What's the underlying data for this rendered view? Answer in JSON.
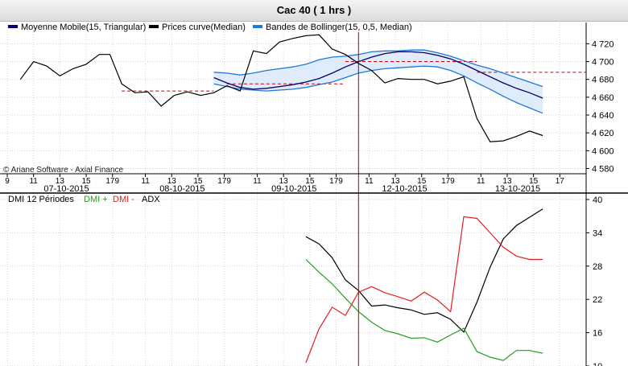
{
  "window": {
    "title": "Cac 40  ( 1 hrs )"
  },
  "watermark": "© Ariane Software - Axial Finance",
  "chart_data": [
    {
      "type": "line",
      "name": "price-panel",
      "legend": [
        {
          "label": "Moyenne Mobile(15, Triangular)",
          "color": "#000066"
        },
        {
          "label": "Prices curve(Median)",
          "color": "#000000"
        },
        {
          "label": "Bandes de Bollinger(15, 0,5, Median)",
          "color": "#1f78d8"
        }
      ],
      "ylim": [
        4575,
        4733
      ],
      "yticks": [
        4580,
        4600,
        4620,
        4640,
        4660,
        4680,
        4700,
        4720
      ],
      "ytick_labels": [
        "4 580",
        "4 600",
        "4 620",
        "4 640",
        "4 660",
        "4 680",
        "4 700",
        "4 720"
      ],
      "xlim": [
        0,
        44
      ],
      "xticks": [
        {
          "x": 0,
          "label": "9"
        },
        {
          "x": 2,
          "label": "11"
        },
        {
          "x": 4,
          "label": "13"
        },
        {
          "x": 6,
          "label": "15"
        },
        {
          "x": 8,
          "label": "179"
        },
        {
          "x": 10.5,
          "label": "11"
        },
        {
          "x": 12.5,
          "label": "13"
        },
        {
          "x": 14.5,
          "label": "15"
        },
        {
          "x": 16.5,
          "label": "179"
        },
        {
          "x": 19,
          "label": "11"
        },
        {
          "x": 21,
          "label": "13"
        },
        {
          "x": 23,
          "label": "15"
        },
        {
          "x": 25,
          "label": "179"
        },
        {
          "x": 27.5,
          "label": "11"
        },
        {
          "x": 29.5,
          "label": "13"
        },
        {
          "x": 31.5,
          "label": "15"
        },
        {
          "x": 33.5,
          "label": "179"
        },
        {
          "x": 36,
          "label": "11"
        },
        {
          "x": 38,
          "label": "13"
        },
        {
          "x": 40,
          "label": "15"
        },
        {
          "x": 42,
          "label": "17"
        }
      ],
      "date_labels": [
        {
          "x": 4.5,
          "label": "07-10-2015"
        },
        {
          "x": 13.3,
          "label": "08-10-2015"
        },
        {
          "x": 21.8,
          "label": "09-10-2015"
        },
        {
          "x": 30.2,
          "label": "12-10-2015"
        },
        {
          "x": 38.8,
          "label": "13-10-2015"
        }
      ],
      "series": [
        {
          "name": "Prices curve(Median)",
          "color": "#000000",
          "x": [
            1,
            2,
            3,
            4,
            5,
            6,
            7,
            7.8,
            8.7,
            9.7,
            10.7,
            11.7,
            12.7,
            13.7,
            14.7,
            15.7,
            16.7,
            17.7,
            18.7,
            19.7,
            20.7,
            21.7,
            22.7,
            23.7,
            24.7,
            25.7,
            26.7,
            27.7,
            28.7,
            29.7,
            30.7,
            31.7,
            32.7,
            33.7,
            34.7,
            35.7,
            36.7,
            37.7,
            38.7,
            39.7,
            40.7
          ],
          "values": [
            4680,
            4700,
            4695,
            4684,
            4692,
            4697,
            4708,
            4708,
            4675,
            4665,
            4666,
            4650,
            4662,
            4666,
            4662,
            4665,
            4673,
            4667,
            4712,
            4709,
            4722,
            4726,
            4729,
            4730,
            4714,
            4708,
            4698,
            4690,
            4676,
            4681,
            4680,
            4680,
            4675,
            4678,
            4683,
            4636,
            4610,
            4611,
            4616,
            4622,
            4617
          ]
        },
        {
          "name": "Moyenne Mobile(15, Triangular)",
          "color": "#000066",
          "x": [
            15.7,
            16.7,
            17.7,
            18.7,
            19.7,
            20.7,
            21.7,
            22.7,
            23.7,
            24.7,
            25.7,
            26.7,
            27.7,
            28.7,
            29.7,
            30.7,
            31.7,
            32.7,
            33.7,
            34.7,
            35.7,
            36.7,
            37.7,
            38.7,
            39.7,
            40.7
          ],
          "values": [
            4682,
            4676,
            4671,
            4669,
            4670,
            4672,
            4674,
            4677,
            4681,
            4687,
            4694,
            4700,
            4705,
            4709,
            4711,
            4711,
            4710,
            4707,
            4703,
            4697,
            4690,
            4683,
            4676,
            4670,
            4665,
            4659
          ]
        },
        {
          "name": "Bollinger upper",
          "color": "#1f78d8",
          "x": [
            15.7,
            16.7,
            17.7,
            18.7,
            19.7,
            20.7,
            21.7,
            22.7,
            23.7,
            24.7,
            25.7,
            26.7,
            27.7,
            28.7,
            29.7,
            30.7,
            31.7,
            32.7,
            33.7,
            34.7,
            35.7,
            36.7,
            37.7,
            38.7,
            39.7,
            40.7
          ],
          "values": [
            4688,
            4687,
            4685,
            4687,
            4690,
            4692,
            4694,
            4697,
            4702,
            4705,
            4706,
            4708,
            4711,
            4712,
            4712,
            4713,
            4713,
            4710,
            4706,
            4701,
            4696,
            4692,
            4687,
            4682,
            4677,
            4672
          ]
        },
        {
          "name": "Bollinger lower",
          "color": "#1f78d8",
          "x": [
            15.7,
            16.7,
            17.7,
            18.7,
            19.7,
            20.7,
            21.7,
            22.7,
            23.7,
            24.7,
            25.7,
            26.7,
            27.7,
            28.7,
            29.7,
            30.7,
            31.7,
            32.7,
            33.7,
            34.7,
            35.7,
            36.7,
            37.7,
            38.7,
            39.7,
            40.7
          ],
          "values": [
            4675,
            4672,
            4669,
            4668,
            4667,
            4668,
            4669,
            4671,
            4674,
            4677,
            4682,
            4687,
            4690,
            4692,
            4693,
            4694,
            4695,
            4694,
            4690,
            4684,
            4676,
            4669,
            4661,
            4654,
            4648,
            4642
          ]
        }
      ],
      "dashed_levels": [
        {
          "x": [
            8.7,
            15.7
          ],
          "y": 4667,
          "color": "#cc0000"
        },
        {
          "x": [
            16.7,
            25.7
          ],
          "y": 4675,
          "color": "#cc0000"
        },
        {
          "x": [
            25.7,
            35.7
          ],
          "y": 4700,
          "color": "#cc0000"
        },
        {
          "x": [
            35.7,
            44
          ],
          "y": 4688,
          "color": "#cc0000"
        }
      ],
      "vertical_marker": {
        "x": 26.7,
        "color": "#a00000"
      }
    },
    {
      "type": "line",
      "name": "dmi-panel",
      "title": "DMI 12 Périodes",
      "legend": [
        {
          "label": "DMI +",
          "color": "#22a022"
        },
        {
          "label": "DMI -",
          "color": "#e02020"
        },
        {
          "label": "ADX",
          "color": "#000000"
        }
      ],
      "ylim": [
        10,
        40
      ],
      "yticks": [
        10,
        16,
        22,
        28,
        34,
        40
      ],
      "xlim": [
        0,
        44
      ],
      "series": [
        {
          "name": "ADX",
          "color": "#000000",
          "x": [
            22.7,
            23.7,
            24.7,
            25.7,
            26.7,
            27.7,
            28.7,
            29.7,
            30.7,
            31.7,
            32.7,
            33.7,
            34.7,
            35.7,
            36.7,
            37.7,
            38.7,
            39.7,
            40.7
          ],
          "values": [
            33.3,
            32,
            29.5,
            25.5,
            23.6,
            20.8,
            21,
            20.5,
            20.1,
            19.3,
            19.6,
            18.4,
            16.1,
            21.5,
            27.8,
            32.9,
            35.3,
            36.8,
            38.3
          ]
        },
        {
          "name": "DMI +",
          "color": "#22a022",
          "x": [
            22.7,
            23.7,
            24.7,
            25.7,
            26.7,
            27.7,
            28.7,
            29.7,
            30.7,
            31.7,
            32.7,
            33.7,
            34.7,
            35.7,
            36.7,
            37.7,
            38.7,
            39.7,
            40.7
          ],
          "values": [
            29.2,
            26.9,
            24.8,
            22.2,
            19.8,
            17.9,
            16.4,
            15.8,
            15,
            15.1,
            14.3,
            15.6,
            16.8,
            12.6,
            11.6,
            11,
            12.8,
            12.8,
            12.3
          ]
        },
        {
          "name": "DMI -",
          "color": "#e02020",
          "x": [
            22.7,
            23.7,
            24.7,
            25.7,
            26.7,
            27.7,
            28.7,
            29.7,
            30.7,
            31.7,
            32.7,
            33.7,
            34.7,
            35.7,
            36.7,
            37.7,
            38.7,
            39.7,
            40.7
          ],
          "values": [
            10.6,
            16.7,
            20.6,
            19.1,
            23.3,
            24.3,
            23.2,
            22.5,
            21.7,
            23.3,
            21.9,
            19.8,
            36.9,
            36.6,
            34,
            31.4,
            29.8,
            29.2,
            29.2
          ]
        }
      ]
    }
  ]
}
